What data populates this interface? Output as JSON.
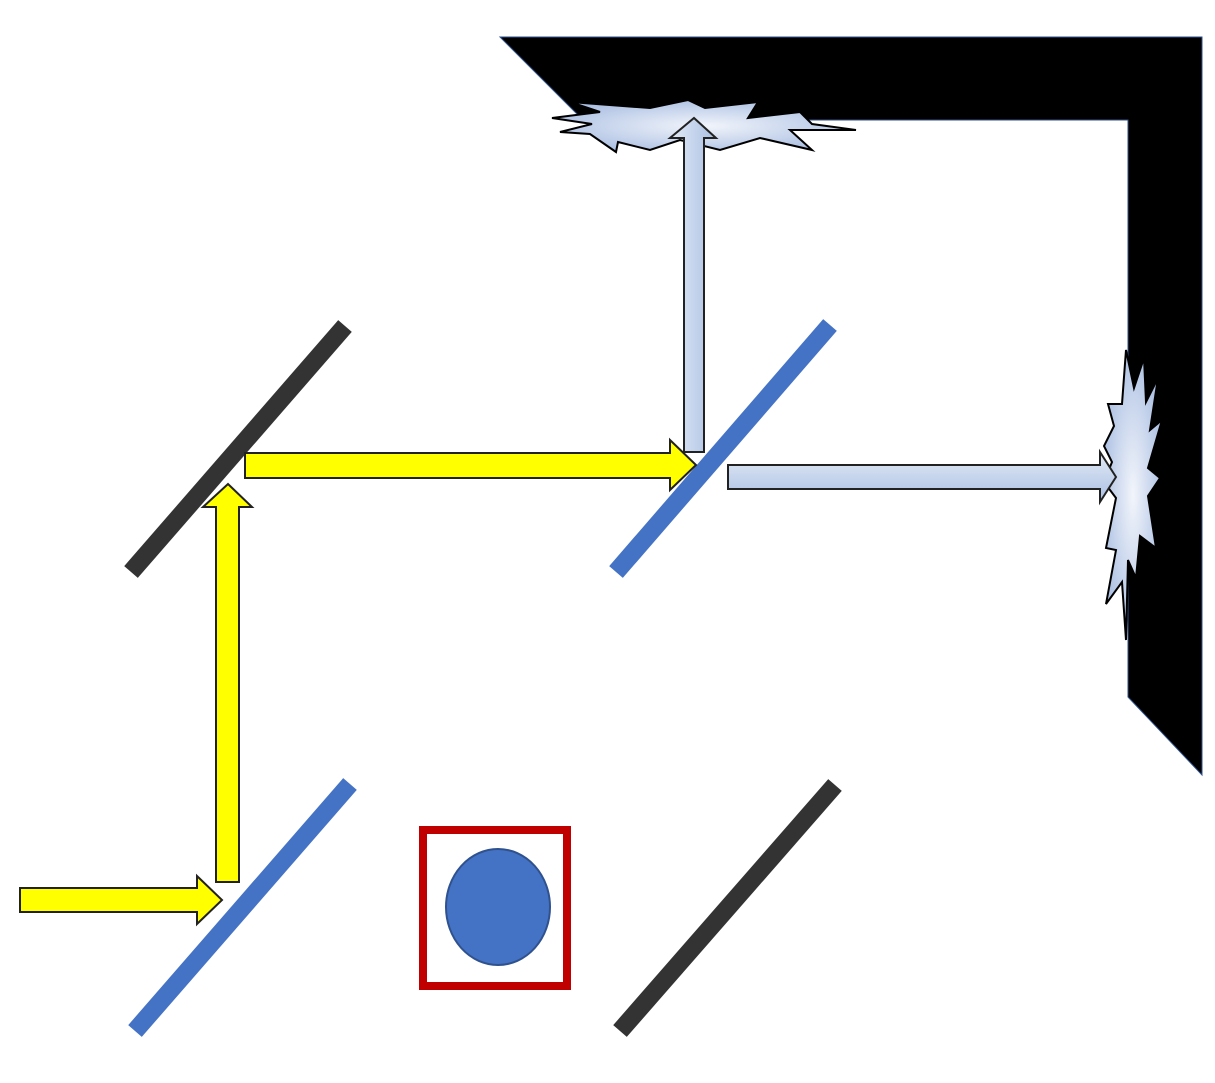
{
  "diagram": {
    "description_visible_text": "",
    "colors": {
      "background": "#ffffff",
      "incoming_beam": "#ffff00",
      "incoming_beam_outline": "#222222",
      "output_beam_light": "#e4ebf6",
      "output_beam_dark": "#a9bfe3",
      "output_beam_outline": "#222222",
      "beam_splitter": "#4472c4",
      "mirror": "#333333",
      "detector_screen": "#000000",
      "object_box_border": "#c00000",
      "object_fill": "#4472c4",
      "object_outline": "#2f528f"
    },
    "components": [
      "input-beam-splitter",
      "upper-left-mirror",
      "lower-right-mirror",
      "output-beam-splitter",
      "object-in-box",
      "detector-screen",
      "top-impact-flash",
      "right-impact-flash"
    ],
    "beams": [
      "incoming-beam",
      "vertical-yellow-beam",
      "horizontal-yellow-beam",
      "output-beam-up",
      "output-beam-right"
    ]
  }
}
